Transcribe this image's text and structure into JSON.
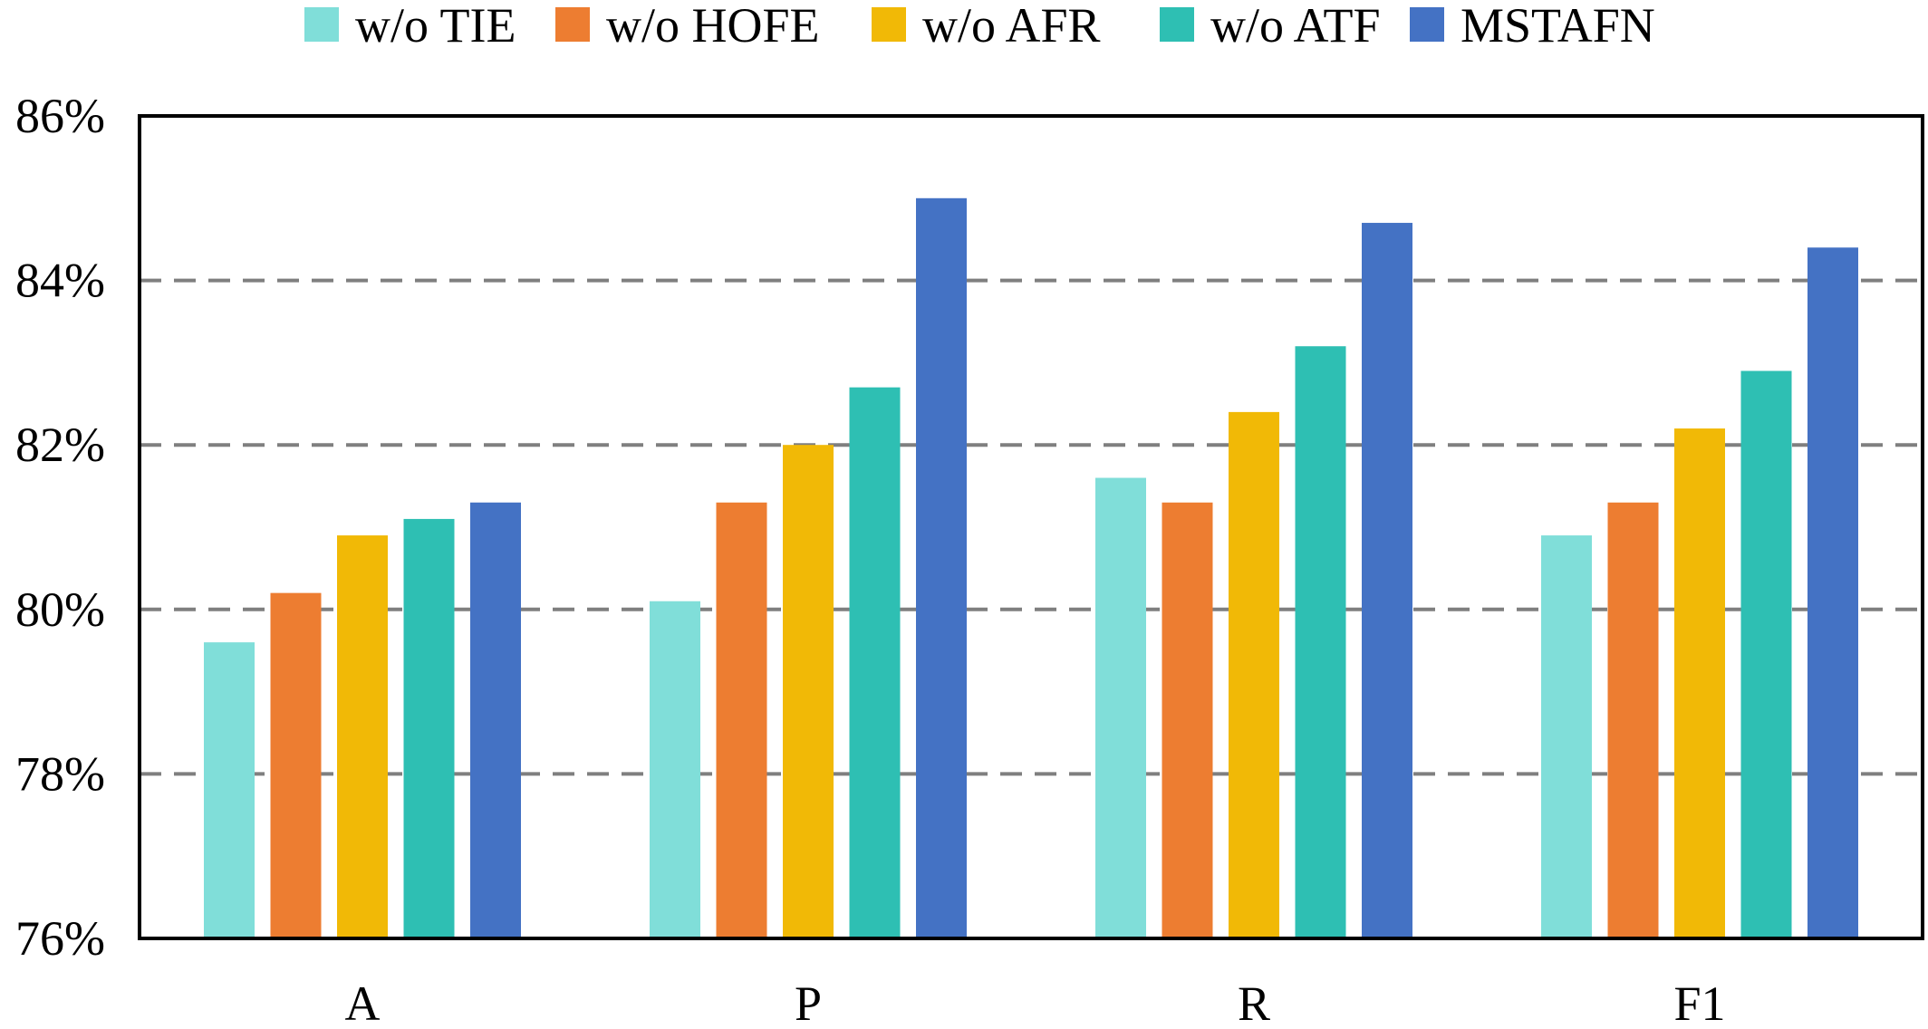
{
  "chart_data": {
    "type": "bar",
    "categories": [
      "A",
      "P",
      "R",
      "F1"
    ],
    "series": [
      {
        "name": "w/o TIE",
        "color": "#80DED9",
        "values": [
          79.6,
          80.1,
          81.6,
          80.9
        ]
      },
      {
        "name": "w/o HOFE",
        "color": "#ED7D31",
        "values": [
          80.2,
          81.3,
          81.3,
          81.3
        ]
      },
      {
        "name": "w/o AFR",
        "color": "#F1B906",
        "values": [
          80.9,
          82.0,
          82.4,
          82.2
        ]
      },
      {
        "name": "w/o ATF",
        "color": "#2EBFB3",
        "values": [
          81.1,
          82.7,
          83.2,
          82.9
        ]
      },
      {
        "name": "MSTAFN",
        "color": "#4472C4",
        "values": [
          81.3,
          85.0,
          84.7,
          84.4
        ]
      }
    ],
    "ylim": [
      76,
      86
    ],
    "yticks": [
      76,
      78,
      80,
      82,
      84,
      86
    ],
    "ytick_labels": [
      "76%",
      "78%",
      "80%",
      "82%",
      "84%",
      "86%"
    ],
    "grid": true,
    "legend_position": "top"
  }
}
